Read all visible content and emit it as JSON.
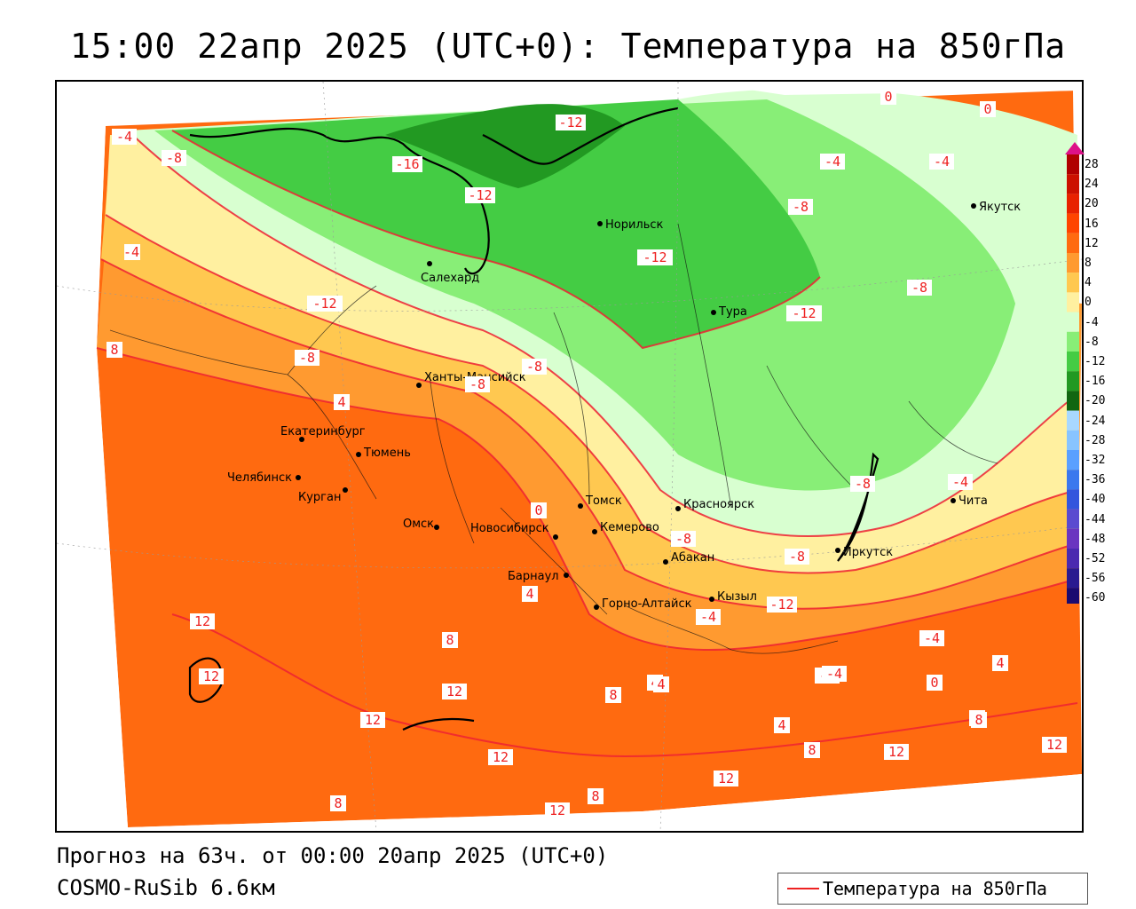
{
  "title": "15:00 22апр 2025 (UTC+0): Температура на 850гПа",
  "footer": {
    "forecast": "Прогноз на 63ч. от 00:00 20апр 2025 (UTC+0)",
    "model": "COSMO-RuSib 6.6км"
  },
  "legend": {
    "label": "Температура на 850гПа",
    "line_color": "#e22222"
  },
  "scale": {
    "ticks": [
      "28",
      "24",
      "20",
      "16",
      "12",
      "8",
      "4",
      "0",
      "-4",
      "-8",
      "-12",
      "-16",
      "-20",
      "-24",
      "-28",
      "-32",
      "-36",
      "-40",
      "-44",
      "-48",
      "-52",
      "-56",
      "-60"
    ],
    "colors": [
      "#b00000",
      "#cc1100",
      "#e82200",
      "#ff4400",
      "#ff6a10",
      "#ff9a30",
      "#ffc850",
      "#fff0a0",
      "#d8ffd0",
      "#88ee77",
      "#44cc44",
      "#229922",
      "#116611",
      "#a8d8ff",
      "#88c4ff",
      "#5aa0ff",
      "#3a78ee",
      "#3355dd",
      "#5a4ad0",
      "#6a35c0",
      "#4a2ab0",
      "#2a1a90",
      "#1a0a70"
    ]
  },
  "cities": [
    {
      "name": "Норильск"
    },
    {
      "name": "Якутск"
    },
    {
      "name": "Салехард"
    },
    {
      "name": "Тура"
    },
    {
      "name": "Ханты-Мансийск"
    },
    {
      "name": "Екатеринбург"
    },
    {
      "name": "Тюмень"
    },
    {
      "name": "Челябинск"
    },
    {
      "name": "Курган"
    },
    {
      "name": "Омск"
    },
    {
      "name": "Новосибирск"
    },
    {
      "name": "Томск"
    },
    {
      "name": "Красноярск"
    },
    {
      "name": "Кемерово"
    },
    {
      "name": "Абакан"
    },
    {
      "name": "Барнаул"
    },
    {
      "name": "Горно-Алтайск"
    },
    {
      "name": "Кызыл"
    },
    {
      "name": "Иркутск"
    },
    {
      "name": "Чита"
    }
  ],
  "contour_labels": [
    "-4",
    "-8",
    "-16",
    "-12",
    "-12",
    "-8",
    "-4",
    "-4",
    "0",
    "0",
    "-4",
    "-8",
    "-12",
    "-12",
    "-8",
    "-12",
    "-8",
    "4",
    "-8",
    "-4",
    "8",
    "0",
    "-8",
    "-8",
    "-4",
    "-12",
    "-8",
    "-4",
    "-4",
    "4",
    "4",
    "8",
    "4",
    "12",
    "12",
    "12",
    "12",
    "12",
    "8",
    "8",
    "4",
    "8",
    "-4",
    "4",
    "0",
    "8",
    "12",
    "12",
    "12",
    "8",
    "8",
    "12"
  ]
}
